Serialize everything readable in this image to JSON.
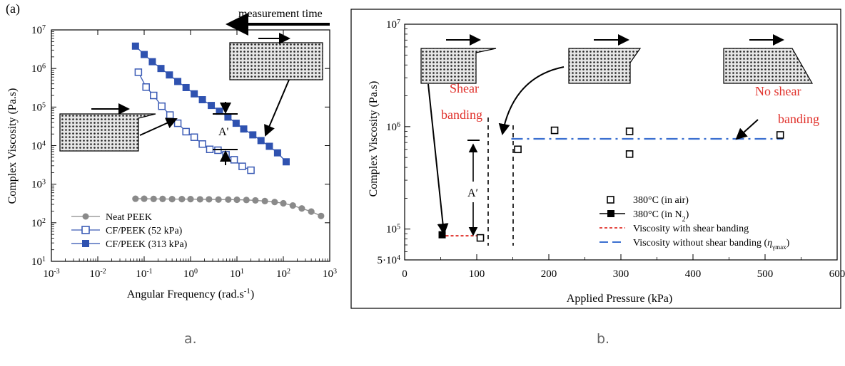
{
  "captions": {
    "a": "a.",
    "b": "b."
  },
  "chart_data": [
    {
      "type": "scatter",
      "panel_label": "(a)",
      "xlabel": "Angular Frequency (rad.s-1)",
      "ylabel": "Complex Viscosity (Pa.s)",
      "xscale": "log",
      "yscale": "log",
      "xlim": [
        0.001,
        1000
      ],
      "ylim": [
        10,
        10000000
      ],
      "x_tick_labels": [
        "10-3",
        "10-2",
        "10-1",
        "100",
        "101",
        "102",
        "103"
      ],
      "y_tick_labels": [
        "101",
        "102",
        "103",
        "104",
        "105",
        "106",
        "107"
      ],
      "legend_position": "bottom-left",
      "series": [
        {
          "name": "Neat PEEK",
          "marker": "circle-filled",
          "color": "#8a8a8a",
          "x": [
            0.065,
            0.1,
            0.16,
            0.25,
            0.4,
            0.65,
            1.0,
            1.6,
            2.5,
            4.0,
            6.5,
            10,
            16,
            25,
            40,
            65,
            100,
            160,
            250,
            400,
            650
          ],
          "y": [
            420,
            420,
            415,
            415,
            410,
            410,
            410,
            405,
            405,
            400,
            400,
            395,
            390,
            380,
            365,
            345,
            320,
            280,
            235,
            195,
            150
          ]
        },
        {
          "name": "CF/PEEK (52 kPa)",
          "marker": "square-open",
          "color": "#3b5bb5",
          "x": [
            0.075,
            0.11,
            0.16,
            0.24,
            0.36,
            0.53,
            0.8,
            1.2,
            1.8,
            2.6,
            3.9,
            5.8,
            8.7,
            13,
            20
          ],
          "y": [
            800000,
            330000,
            200000,
            105000,
            62000,
            38000,
            23000,
            16500,
            11000,
            8000,
            7600,
            5800,
            4300,
            2900,
            2300
          ]
        },
        {
          "name": "CF/PEEK (313 kPa)",
          "marker": "square-filled",
          "color": "#2f52b0",
          "x": [
            0.065,
            0.1,
            0.15,
            0.23,
            0.35,
            0.53,
            0.8,
            1.2,
            1.8,
            2.8,
            4.2,
            6.4,
            9.6,
            14,
            22,
            33,
            50,
            75,
            115
          ],
          "y": [
            3800000,
            2300000,
            1500000,
            1000000,
            680000,
            460000,
            320000,
            220000,
            155000,
            110000,
            78000,
            55000,
            38000,
            27000,
            19000,
            13500,
            9600,
            6500,
            3800
          ]
        }
      ],
      "annotations": [
        "measurement time",
        "A'"
      ]
    },
    {
      "type": "scatter",
      "xlabel": "Applied Pressure (kPa)",
      "ylabel": "Complex Viscosity (Pa.s)",
      "xlim": [
        0,
        600
      ],
      "ylim": [
        50000,
        10000000
      ],
      "yscale": "log",
      "x_tick_labels": [
        "0",
        "100",
        "200",
        "300",
        "400",
        "500",
        "600"
      ],
      "y_tick_labels": [
        "5·104",
        "105",
        "106",
        "107"
      ],
      "legend_position": "bottom-right",
      "series": [
        {
          "name": "380°C (in air)",
          "marker": "square-open",
          "color": "#000000",
          "x": [
            105,
            157,
            208,
            312,
            312,
            521
          ],
          "y": [
            82000,
            600000,
            920000,
            900000,
            540000,
            830000
          ]
        },
        {
          "name": "380°C (in N2)",
          "marker": "square-filled",
          "color": "#000000",
          "x": [
            52
          ],
          "y": [
            88000
          ]
        },
        {
          "name": "Viscosity with shear banding",
          "style": "dashed",
          "color": "#e0302a",
          "x": [
            50,
            110
          ],
          "y": [
            86000,
            86000
          ]
        },
        {
          "name": "Viscosity without shear banding (ηγmax)",
          "style": "dash-dot",
          "color": "#3b6fd0",
          "x": [
            148,
            525
          ],
          "y": [
            760000,
            760000
          ]
        }
      ],
      "annotations": {
        "shear_banding": [
          "Shear",
          "banding"
        ],
        "no_shear_banding": [
          "No shear",
          "banding"
        ],
        "a_prime": "A′"
      }
    }
  ],
  "colors": {
    "blue_line": "#3b5bb5",
    "blue_fill": "#2f52b0",
    "grey": "#8a8a8a",
    "red": "#e0302a",
    "dashdot": "#3b6fd0"
  }
}
